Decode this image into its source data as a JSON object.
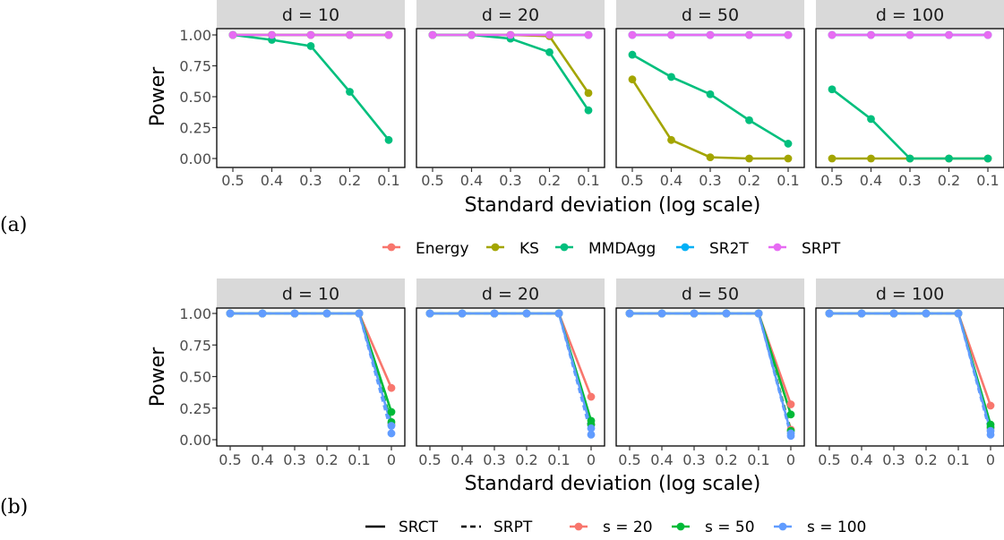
{
  "chart_data": [
    {
      "type": "line",
      "panel_label": "(a)",
      "xlabel": "Standard deviation (log scale)",
      "ylabel": "Power",
      "ylim": [
        0,
        1
      ],
      "y_ticks": [
        "0.00",
        "0.25",
        "0.50",
        "0.75",
        "1.00"
      ],
      "x_ticks": [
        "0.5",
        "0.4",
        "0.3",
        "0.2",
        "0.1"
      ],
      "x_scale": "log",
      "x_reversed": true,
      "grid": false,
      "legend_position": "bottom",
      "legend": [
        {
          "name": "Energy",
          "color": "#F8766D"
        },
        {
          "name": "KS",
          "color": "#A3A500"
        },
        {
          "name": "MMDAgg",
          "color": "#00BF7D"
        },
        {
          "name": "SR2T",
          "color": "#00B0F6"
        },
        {
          "name": "SRPT",
          "color": "#E76BF3"
        }
      ],
      "facets": [
        {
          "strip": "d = 10",
          "x": [
            0.5,
            0.4,
            0.3,
            0.2,
            0.1
          ],
          "series": [
            {
              "name": "Energy",
              "values": [
                1,
                1,
                1,
                1,
                1
              ]
            },
            {
              "name": "SR2T",
              "values": [
                1,
                1,
                1,
                1,
                1
              ]
            },
            {
              "name": "KS",
              "values": [
                1,
                1,
                1,
                1,
                1
              ]
            },
            {
              "name": "MMDAgg",
              "values": [
                1.0,
                0.96,
                0.91,
                0.54,
                0.15
              ]
            },
            {
              "name": "SRPT",
              "values": [
                1,
                1,
                1,
                1,
                1
              ]
            }
          ]
        },
        {
          "strip": "d = 20",
          "x": [
            0.5,
            0.4,
            0.3,
            0.2,
            0.1
          ],
          "series": [
            {
              "name": "Energy",
              "values": [
                1,
                1,
                1,
                1,
                1
              ]
            },
            {
              "name": "SR2T",
              "values": [
                1,
                1,
                1,
                1,
                1
              ]
            },
            {
              "name": "KS",
              "values": [
                1.0,
                1.0,
                1.0,
                0.99,
                0.53
              ]
            },
            {
              "name": "MMDAgg",
              "values": [
                1.0,
                1.0,
                0.97,
                0.86,
                0.39
              ]
            },
            {
              "name": "SRPT",
              "values": [
                1,
                1,
                1,
                1,
                1
              ]
            }
          ]
        },
        {
          "strip": "d = 50",
          "x": [
            0.5,
            0.4,
            0.3,
            0.2,
            0.1
          ],
          "series": [
            {
              "name": "Energy",
              "values": [
                1,
                1,
                1,
                1,
                1
              ]
            },
            {
              "name": "SR2T",
              "values": [
                1,
                1,
                1,
                1,
                1
              ]
            },
            {
              "name": "KS",
              "values": [
                0.64,
                0.15,
                0.01,
                0.0,
                0.0
              ]
            },
            {
              "name": "MMDAgg",
              "values": [
                0.84,
                0.66,
                0.52,
                0.31,
                0.12
              ]
            },
            {
              "name": "SRPT",
              "values": [
                1,
                1,
                1,
                1,
                1
              ]
            }
          ]
        },
        {
          "strip": "d = 100",
          "x": [
            0.5,
            0.4,
            0.3,
            0.2,
            0.1
          ],
          "series": [
            {
              "name": "Energy",
              "values": [
                1,
                1,
                1,
                1,
                1
              ]
            },
            {
              "name": "SR2T",
              "values": [
                1,
                1,
                1,
                1,
                1
              ]
            },
            {
              "name": "KS",
              "values": [
                0.0,
                0.0,
                0.0,
                0.0,
                0.0
              ]
            },
            {
              "name": "MMDAgg",
              "values": [
                0.56,
                0.32,
                0.0,
                0.0,
                0.0
              ]
            },
            {
              "name": "SRPT",
              "values": [
                1,
                1,
                1,
                1,
                1
              ]
            }
          ]
        }
      ]
    },
    {
      "type": "line",
      "panel_label": "(b)",
      "xlabel": "Standard deviation (log scale)",
      "ylabel": "Power",
      "ylim": [
        0,
        1
      ],
      "y_ticks": [
        "0.00",
        "0.25",
        "0.50",
        "0.75",
        "1.00"
      ],
      "x_ticks": [
        "0.5",
        "0.4",
        "0.3",
        "0.2",
        "0.1",
        "0"
      ],
      "x_scale": "log",
      "x_reversed": true,
      "grid": false,
      "legend_position": "bottom",
      "legend_linetype": [
        {
          "name": "SRCT",
          "dash": "solid"
        },
        {
          "name": "SRPT",
          "dash": "dashed"
        }
      ],
      "legend_color": [
        {
          "name": "s = 20",
          "color": "#F8766D"
        },
        {
          "name": "s = 50",
          "color": "#00BA38"
        },
        {
          "name": "s = 100",
          "color": "#619CFF"
        }
      ],
      "facets": [
        {
          "strip": "d = 10",
          "x": [
            0.5,
            0.4,
            0.3,
            0.2,
            0.1,
            0
          ],
          "series": [
            {
              "name": "SRCT, s = 20",
              "values": [
                1,
                1,
                1,
                1,
                1,
                0.41
              ]
            },
            {
              "name": "SRPT, s = 20",
              "values": [
                1,
                1,
                1,
                1,
                1,
                0.12
              ]
            },
            {
              "name": "SRCT, s = 50",
              "values": [
                1,
                1,
                1,
                1,
                1,
                0.22
              ]
            },
            {
              "name": "SRPT, s = 50",
              "values": [
                1,
                1,
                1,
                1,
                1,
                0.14
              ]
            },
            {
              "name": "SRCT, s = 100",
              "values": [
                1,
                1,
                1,
                1,
                1,
                0.11
              ]
            },
            {
              "name": "SRPT, s = 100",
              "values": [
                1,
                1,
                1,
                1,
                1,
                0.05
              ]
            }
          ]
        },
        {
          "strip": "d = 20",
          "x": [
            0.5,
            0.4,
            0.3,
            0.2,
            0.1,
            0
          ],
          "series": [
            {
              "name": "SRCT, s = 20",
              "values": [
                1,
                1,
                1,
                1,
                1,
                0.34
              ]
            },
            {
              "name": "SRPT, s = 20",
              "values": [
                1,
                1,
                1,
                1,
                1,
                0.12
              ]
            },
            {
              "name": "SRCT, s = 50",
              "values": [
                1,
                1,
                1,
                1,
                1,
                0.15
              ]
            },
            {
              "name": "SRPT, s = 50",
              "values": [
                1,
                1,
                1,
                1,
                1,
                0.12
              ]
            },
            {
              "name": "SRCT, s = 100",
              "values": [
                1,
                1,
                1,
                1,
                1,
                0.09
              ]
            },
            {
              "name": "SRPT, s = 100",
              "values": [
                1,
                1,
                1,
                1,
                1,
                0.04
              ]
            }
          ]
        },
        {
          "strip": "d = 50",
          "x": [
            0.5,
            0.4,
            0.3,
            0.2,
            0.1,
            0
          ],
          "series": [
            {
              "name": "SRCT, s = 20",
              "values": [
                1,
                1,
                1,
                1,
                1,
                0.28
              ]
            },
            {
              "name": "SRPT, s = 20",
              "values": [
                1,
                1,
                1,
                1,
                1,
                0.08
              ]
            },
            {
              "name": "SRCT, s = 50",
              "values": [
                1,
                1,
                1,
                1,
                1,
                0.2
              ]
            },
            {
              "name": "SRPT, s = 50",
              "values": [
                1,
                1,
                1,
                1,
                1,
                0.07
              ]
            },
            {
              "name": "SRCT, s = 100",
              "values": [
                1,
                1,
                1,
                1,
                1,
                0.05
              ]
            },
            {
              "name": "SRPT, s = 100",
              "values": [
                1,
                1,
                1,
                1,
                1,
                0.03
              ]
            }
          ]
        },
        {
          "strip": "d = 100",
          "x": [
            0.5,
            0.4,
            0.3,
            0.2,
            0.1,
            0
          ],
          "series": [
            {
              "name": "SRCT, s = 20",
              "values": [
                1,
                1,
                1,
                1,
                1,
                0.27
              ]
            },
            {
              "name": "SRPT, s = 20",
              "values": [
                1,
                1,
                1,
                1,
                1,
                0.09
              ]
            },
            {
              "name": "SRCT, s = 50",
              "values": [
                1,
                1,
                1,
                1,
                1,
                0.12
              ]
            },
            {
              "name": "SRPT, s = 50",
              "values": [
                1,
                1,
                1,
                1,
                1,
                0.1
              ]
            },
            {
              "name": "SRCT, s = 100",
              "values": [
                1,
                1,
                1,
                1,
                1,
                0.07
              ]
            },
            {
              "name": "SRPT, s = 100",
              "values": [
                1,
                1,
                1,
                1,
                1,
                0.04
              ]
            }
          ]
        }
      ]
    }
  ]
}
